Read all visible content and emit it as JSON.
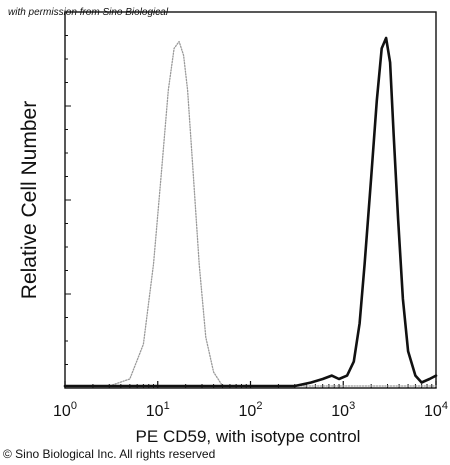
{
  "watermark": "with permission from Sino Biological",
  "copyright": "© Sino Biological Inc. All rights reserved",
  "chart_data": {
    "type": "line",
    "title": "",
    "xlabel": "PE CD59, with isotype control",
    "ylabel": "Relative Cell Number",
    "x_scale": "log",
    "xlim": [
      1,
      10000
    ],
    "ylim": [
      0,
      100
    ],
    "x_tick_labels": [
      {
        "base": "10",
        "exp": "0"
      },
      {
        "base": "10",
        "exp": "1"
      },
      {
        "base": "10",
        "exp": "2"
      },
      {
        "base": "10",
        "exp": "3"
      },
      {
        "base": "10",
        "exp": "4"
      }
    ],
    "y_tick_labels": [],
    "grid": false,
    "legend": "none",
    "series": [
      {
        "style": "dotted",
        "color": "#9a9a9a",
        "x": [
          1,
          3,
          5,
          7,
          9,
          11,
          13,
          15,
          17,
          19,
          21,
          24,
          28,
          33,
          40,
          50,
          100,
          1000,
          10000
        ],
        "y": [
          0,
          0,
          2,
          12,
          35,
          62,
          85,
          97,
          99,
          95,
          85,
          62,
          35,
          14,
          4,
          0,
          0,
          0,
          0
        ]
      },
      {
        "style": "solid",
        "color": "#111111",
        "x": [
          1,
          100,
          300,
          450,
          600,
          750,
          900,
          1100,
          1300,
          1500,
          1700,
          2000,
          2300,
          2600,
          2900,
          3200,
          3500,
          3900,
          4400,
          5000,
          6000,
          7000,
          8500,
          10000
        ],
        "y": [
          0,
          0,
          0,
          1,
          2,
          3,
          2,
          3,
          7,
          18,
          35,
          60,
          82,
          97,
          100,
          93,
          72,
          48,
          25,
          10,
          3,
          1,
          2,
          3
        ]
      }
    ]
  }
}
